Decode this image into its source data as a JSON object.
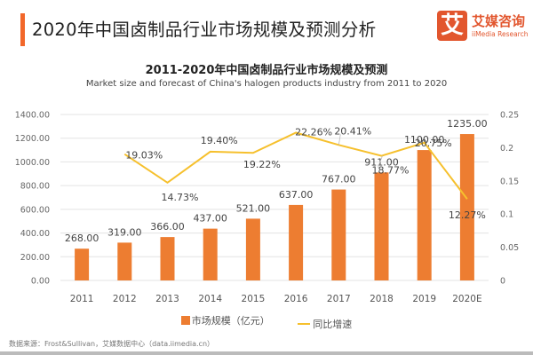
{
  "header": {
    "title": "2020年中国卤制品行业市场规模及预测分析",
    "accent_color": "#f2672a",
    "logo": {
      "icon_char": "艾",
      "name_cn": "艾媒咨询",
      "name_en": "iiMedia Research",
      "color": "#e2562e"
    }
  },
  "footer": {
    "source": "数据来源：Frost&Sullivan，艾媒数据中心（data.iimedia.cn）"
  },
  "chart_data": {
    "type": "bar",
    "title": "2011-2020年中国卤制品行业市场规模及预测",
    "subtitle": "Market size and forecast of China's halogen products industry from 2011 to 2020",
    "categories": [
      "2011",
      "2012",
      "2013",
      "2014",
      "2015",
      "2016",
      "2017",
      "2018",
      "2019",
      "2020E"
    ],
    "series": [
      {
        "name": "市场规模（亿元）",
        "type": "bar",
        "axis": "left",
        "color": "#ed7d31",
        "values": [
          268.0,
          319.0,
          366.0,
          437.0,
          521.0,
          637.0,
          767.0,
          911.0,
          1100.0,
          1235.0
        ],
        "labels": [
          "268.00",
          "319.00",
          "366.00",
          "437.00",
          "521.00",
          "637.00",
          "767.00",
          "911.00",
          "1100.00",
          "1235.00"
        ]
      },
      {
        "name": "同比增速",
        "type": "line",
        "axis": "right",
        "color": "#f6c02d",
        "values": [
          null,
          0.1903,
          0.1473,
          0.194,
          0.1922,
          0.2226,
          0.2041,
          0.1877,
          0.2075,
          0.1227
        ],
        "labels": [
          null,
          "19.03%",
          "14.73%",
          "19.40%",
          "19.22%",
          "22.26%",
          "20.41%",
          "18.77%",
          "20.75%",
          "12.27%"
        ]
      }
    ],
    "y_left": {
      "range": [
        0,
        1400
      ],
      "ticks": [
        0,
        200,
        400,
        600,
        800,
        1000,
        1200,
        1400
      ],
      "tick_labels": [
        "0.00",
        "200.00",
        "400.00",
        "600.00",
        "800.00",
        "1000.00",
        "1200.00",
        "1400.00"
      ]
    },
    "y_right": {
      "range": [
        0,
        0.25
      ],
      "ticks": [
        0,
        0.05,
        0.1,
        0.15,
        0.2,
        0.25
      ],
      "tick_labels": [
        "0",
        "0.05",
        "0.1",
        "0.15",
        "0.2",
        "0.25"
      ]
    },
    "grid": true,
    "legend_position": "bottom",
    "legend": [
      "市场规模（亿元）",
      "同比增速"
    ]
  }
}
